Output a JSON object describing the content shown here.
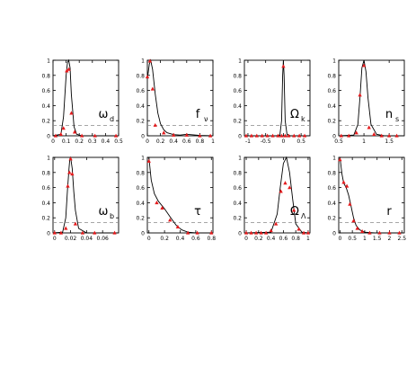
{
  "chart_data": [
    {
      "type": "line",
      "param_label": "ω",
      "param_sub": "d",
      "xlim": [
        0,
        0.5
      ],
      "ylim": [
        0,
        1
      ],
      "x_ticks": [
        "0",
        "0.1",
        "0.2",
        "0.3",
        "0.4",
        "0.5"
      ],
      "y_ticks": [
        "0",
        "0.2",
        "0.4",
        "0.6",
        "0.8",
        "1"
      ],
      "threshold": 0.135,
      "curve": {
        "x": [
          0.0,
          0.06,
          0.08,
          0.1,
          0.11,
          0.12,
          0.13,
          0.14,
          0.16,
          0.18,
          0.22,
          0.3,
          0.5
        ],
        "y": [
          0.0,
          0.02,
          0.25,
          0.8,
          0.97,
          1.0,
          0.9,
          0.55,
          0.12,
          0.02,
          0.0,
          0.0,
          0.0
        ]
      },
      "points": {
        "x": [
          0.02,
          0.06,
          0.08,
          0.105,
          0.12,
          0.14,
          0.165,
          0.22,
          0.32,
          0.48
        ],
        "y": [
          0.0,
          0.02,
          0.1,
          0.86,
          0.88,
          0.3,
          0.05,
          0.0,
          0.0,
          0.0
        ]
      }
    },
    {
      "type": "line",
      "param_label": "f",
      "param_sub": "ν",
      "xlim": [
        0,
        1
      ],
      "ylim": [
        0,
        1
      ],
      "x_ticks": [
        "0",
        "0.2",
        "0.4",
        "0.6",
        "0.8",
        "1"
      ],
      "y_ticks": [
        "0",
        "0.2",
        "0.4",
        "0.6",
        "0.8",
        "1"
      ],
      "threshold": 0.135,
      "curve": {
        "x": [
          0.0,
          0.03,
          0.05,
          0.08,
          0.12,
          0.16,
          0.2,
          0.25,
          0.3,
          0.4,
          0.5,
          0.6,
          0.8,
          1.0
        ],
        "y": [
          0.75,
          0.95,
          1.0,
          0.88,
          0.55,
          0.3,
          0.16,
          0.08,
          0.04,
          0.015,
          0.01,
          0.02,
          0.005,
          0.0
        ]
      },
      "points": {
        "x": [
          0.0,
          0.04,
          0.08,
          0.12,
          0.25,
          0.4,
          0.6,
          0.8,
          0.96
        ],
        "y": [
          0.78,
          0.99,
          0.62,
          0.14,
          0.04,
          0.01,
          0.01,
          0.0,
          0.0
        ]
      }
    },
    {
      "type": "line",
      "param_label": "Ω",
      "param_sub": "k",
      "xlim": [
        -1.1,
        0.75
      ],
      "ylim": [
        0,
        1
      ],
      "x_ticks": [
        "-1",
        "-0.5",
        "0",
        "0.5"
      ],
      "x_tick_values": [
        -1,
        -0.5,
        0,
        0.5
      ],
      "y_ticks": [
        "0",
        "0.2",
        "0.4",
        "0.6",
        "0.8",
        "1"
      ],
      "threshold": 0.135,
      "curve": {
        "x": [
          -1.1,
          -0.2,
          -0.1,
          -0.05,
          -0.02,
          0.0,
          0.02,
          0.05,
          0.1,
          0.2,
          0.75
        ],
        "y": [
          0.0,
          0.0,
          0.01,
          0.2,
          0.8,
          1.0,
          0.8,
          0.2,
          0.02,
          0.0,
          0.0
        ]
      },
      "points": {
        "x": [
          -1.05,
          -0.9,
          -0.75,
          -0.6,
          -0.45,
          -0.3,
          -0.15,
          -0.05,
          0.0,
          0.05,
          0.15,
          0.3,
          0.45,
          0.6
        ],
        "y": [
          0.0,
          0.0,
          0.0,
          0.0,
          0.0,
          0.0,
          0.0,
          0.0,
          0.92,
          0.0,
          0.0,
          0.0,
          0.0,
          0.0
        ]
      }
    },
    {
      "type": "line",
      "param_label": "n",
      "param_sub": "s",
      "xlim": [
        0.5,
        1.8
      ],
      "ylim": [
        0,
        1
      ],
      "x_ticks": [
        "0.5",
        "1",
        "1.5"
      ],
      "x_tick_values": [
        0.5,
        1,
        1.5
      ],
      "y_ticks": [
        "0",
        "0.2",
        "0.4",
        "0.6",
        "0.8",
        "1"
      ],
      "threshold": 0.135,
      "curve": {
        "x": [
          0.5,
          0.8,
          0.88,
          0.92,
          0.96,
          1.0,
          1.04,
          1.08,
          1.14,
          1.25,
          1.4,
          1.8
        ],
        "y": [
          0.0,
          0.01,
          0.15,
          0.5,
          0.9,
          1.0,
          0.85,
          0.5,
          0.15,
          0.02,
          0.0,
          0.0
        ]
      },
      "points": {
        "x": [
          0.55,
          0.7,
          0.85,
          0.92,
          1.0,
          1.1,
          1.2,
          1.35,
          1.5,
          1.65
        ],
        "y": [
          0.0,
          0.0,
          0.04,
          0.54,
          0.93,
          0.11,
          0.02,
          0.0,
          0.0,
          0.0
        ]
      }
    },
    {
      "type": "line",
      "param_label": "ω",
      "param_sub": "b",
      "xlim": [
        -0.002,
        0.08
      ],
      "ylim": [
        0,
        1
      ],
      "x_ticks": [
        "0",
        "0.02",
        "0.04",
        "0.06"
      ],
      "x_tick_values": [
        0,
        0.02,
        0.04,
        0.06
      ],
      "y_ticks": [
        "0",
        "0.2",
        "0.4",
        "0.6",
        "0.8",
        "1"
      ],
      "threshold": 0.135,
      "curve": {
        "x": [
          -0.002,
          0.01,
          0.014,
          0.016,
          0.018,
          0.019,
          0.02,
          0.022,
          0.024,
          0.026,
          0.03,
          0.04,
          0.08
        ],
        "y": [
          0.0,
          0.01,
          0.2,
          0.55,
          0.85,
          0.98,
          1.0,
          0.85,
          0.55,
          0.3,
          0.06,
          0.0,
          0.0
        ]
      },
      "points": {
        "x": [
          0.0,
          0.008,
          0.014,
          0.0165,
          0.0185,
          0.02,
          0.022,
          0.026,
          0.035,
          0.05,
          0.075
        ],
        "y": [
          0.0,
          0.0,
          0.06,
          0.62,
          0.8,
          0.98,
          0.78,
          0.12,
          0.0,
          0.0,
          0.0
        ]
      }
    },
    {
      "type": "line",
      "param_label": "τ",
      "param_sub": "",
      "xlim": [
        -0.02,
        0.82
      ],
      "ylim": [
        0,
        1
      ],
      "x_ticks": [
        "0",
        "0.2",
        "0.4",
        "0.6",
        "0.8"
      ],
      "x_tick_values": [
        0,
        0.2,
        0.4,
        0.6,
        0.8
      ],
      "y_ticks": [
        "0",
        "0.2",
        "0.4",
        "0.6",
        "0.8",
        "1"
      ],
      "threshold": 0.135,
      "curve": {
        "x": [
          0.0,
          0.03,
          0.07,
          0.12,
          0.2,
          0.28,
          0.35,
          0.42,
          0.5,
          0.6,
          0.8
        ],
        "y": [
          1.0,
          0.7,
          0.52,
          0.42,
          0.32,
          0.2,
          0.1,
          0.04,
          0.01,
          0.0,
          0.0
        ]
      },
      "points": {
        "x": [
          0.0,
          0.1,
          0.17,
          0.27,
          0.37,
          0.5,
          0.62,
          0.8
        ],
        "y": [
          0.95,
          0.4,
          0.33,
          0.17,
          0.08,
          0.0,
          0.0,
          0.0
        ]
      }
    },
    {
      "type": "line",
      "param_label": "Ω",
      "param_sub": "Λ",
      "xlim": [
        -0.03,
        1.03
      ],
      "ylim": [
        0,
        1
      ],
      "x_ticks": [
        "0",
        "0.2",
        "0.4",
        "0.6",
        "0.8",
        "1"
      ],
      "x_tick_values": [
        0,
        0.2,
        0.4,
        0.6,
        0.8,
        1
      ],
      "y_ticks": [
        "0",
        "0.2",
        "0.4",
        "0.6",
        "0.8",
        "1"
      ],
      "threshold": 0.135,
      "curve": {
        "x": [
          0.0,
          0.4,
          0.5,
          0.55,
          0.6,
          0.65,
          0.7,
          0.75,
          0.8,
          0.9,
          1.0
        ],
        "y": [
          0.0,
          0.01,
          0.25,
          0.6,
          0.92,
          1.0,
          0.8,
          0.45,
          0.12,
          0.01,
          0.0
        ]
      },
      "points": {
        "x": [
          0.0,
          0.08,
          0.16,
          0.24,
          0.32,
          0.4,
          0.48,
          0.56,
          0.63,
          0.7,
          0.77,
          0.85,
          0.93,
          1.0
        ],
        "y": [
          0.0,
          0.0,
          0.0,
          0.0,
          0.0,
          0.03,
          0.12,
          0.55,
          0.66,
          0.6,
          0.3,
          0.05,
          0.0,
          0.0
        ]
      }
    },
    {
      "type": "line",
      "param_label": "r",
      "param_sub": "",
      "xlim": [
        -0.05,
        2.6
      ],
      "ylim": [
        0,
        1
      ],
      "x_ticks": [
        "0",
        "0.5",
        "1",
        "1.5",
        "2",
        "2.5"
      ],
      "x_tick_values": [
        0,
        0.5,
        1,
        1.5,
        2,
        2.5
      ],
      "y_ticks": [
        "0",
        "0.2",
        "0.4",
        "0.6",
        "0.8",
        "1"
      ],
      "threshold": 0.135,
      "curve": {
        "x": [
          0.0,
          0.08,
          0.15,
          0.25,
          0.35,
          0.45,
          0.55,
          0.65,
          0.8,
          1.0,
          1.4,
          2.0,
          2.5
        ],
        "y": [
          1.0,
          0.78,
          0.66,
          0.6,
          0.5,
          0.35,
          0.2,
          0.1,
          0.04,
          0.01,
          0.0,
          0.0,
          0.0
        ]
      },
      "points": {
        "x": [
          0.0,
          0.15,
          0.28,
          0.4,
          0.55,
          0.7,
          0.9,
          1.2,
          1.6,
          2.0,
          2.4
        ],
        "y": [
          0.97,
          0.67,
          0.62,
          0.38,
          0.16,
          0.06,
          0.02,
          0.0,
          0.0,
          0.0,
          0.0
        ]
      }
    }
  ],
  "colors": {
    "curve": "#000000",
    "points": "#e41a1c",
    "threshold": "#888888",
    "axis": "#000000"
  }
}
